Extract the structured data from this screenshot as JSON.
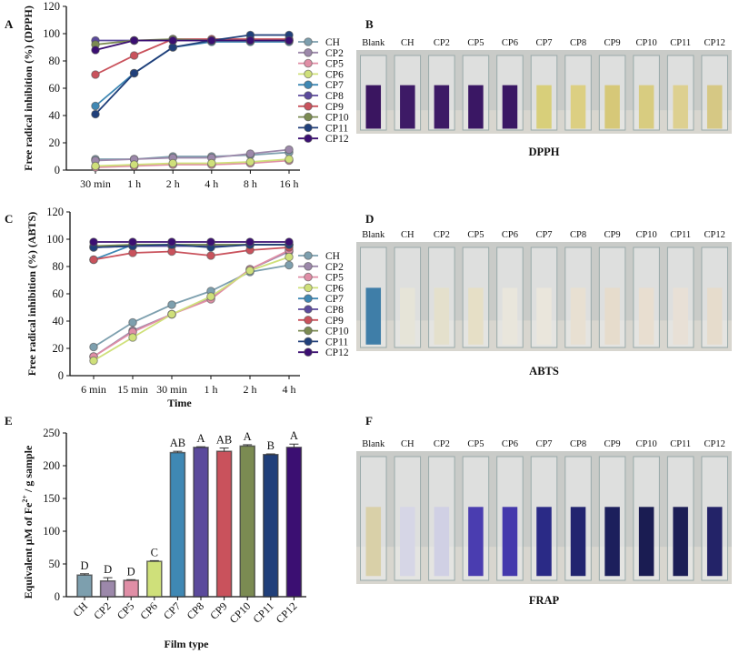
{
  "panels": {
    "A": "A",
    "B": "B",
    "C": "C",
    "D": "D",
    "E": "E",
    "F": "F"
  },
  "series_colors": {
    "CH": "#7d9fae",
    "CP2": "#9c88aa",
    "CP5": "#e08ea6",
    "CP6": "#cfe07a",
    "CP7": "#3f88b4",
    "CP8": "#5b4a9c",
    "CP9": "#c9525c",
    "CP10": "#7b8b52",
    "CP11": "#203f7a",
    "CP12": "#3b0f72"
  },
  "chart_data": [
    {
      "type": "line",
      "panel": "A",
      "title": "",
      "xlabel": "",
      "ylabel": "Free radical inhibition (%) (DPPH)",
      "ylim": [
        0,
        120
      ],
      "yticks": [
        "0",
        "20",
        "40",
        "60",
        "80",
        "100",
        "120"
      ],
      "categories": [
        "30 min",
        "1 h",
        "2 h",
        "4 h",
        "8 h",
        "16 h"
      ],
      "legend": "right",
      "series": [
        {
          "name": "CH",
          "values": [
            8,
            8,
            10,
            10,
            11,
            13
          ]
        },
        {
          "name": "CP2",
          "values": [
            7,
            8,
            9,
            9,
            12,
            15
          ]
        },
        {
          "name": "CP5",
          "values": [
            2,
            3,
            4,
            4,
            5,
            7
          ]
        },
        {
          "name": "CP6",
          "values": [
            3,
            4,
            5,
            5,
            6,
            8
          ]
        },
        {
          "name": "CP7",
          "values": [
            47,
            71,
            90,
            94,
            94,
            94
          ]
        },
        {
          "name": "CP8",
          "values": [
            95,
            95,
            95,
            95,
            95,
            95
          ]
        },
        {
          "name": "CP9",
          "values": [
            70,
            84,
            96,
            96,
            96,
            96
          ]
        },
        {
          "name": "CP10",
          "values": [
            92,
            95,
            96,
            95,
            95,
            95
          ]
        },
        {
          "name": "CP11",
          "values": [
            41,
            71,
            90,
            95,
            99,
            99
          ]
        },
        {
          "name": "CP12",
          "values": [
            88,
            95,
            95,
            95,
            95,
            95
          ]
        }
      ]
    },
    {
      "type": "line",
      "panel": "C",
      "title": "",
      "xlabel": "Time",
      "ylabel": "Free radical inhibition (%) (ABTS)",
      "ylim": [
        0,
        120
      ],
      "yticks": [
        "0",
        "20",
        "40",
        "60",
        "80",
        "100",
        "120"
      ],
      "categories": [
        "6 min",
        "15 min",
        "30 min",
        "1 h",
        "2 h",
        "4 h"
      ],
      "legend": "right",
      "series": [
        {
          "name": "CH",
          "values": [
            21,
            39,
            52,
            62,
            76,
            81
          ]
        },
        {
          "name": "CP2",
          "values": [
            14,
            33,
            45,
            57,
            78,
            91
          ]
        },
        {
          "name": "CP5",
          "values": [
            14,
            32,
            45,
            56,
            78,
            92
          ]
        },
        {
          "name": "CP6",
          "values": [
            11,
            28,
            45,
            58,
            77,
            87
          ]
        },
        {
          "name": "CP7",
          "values": [
            85,
            96,
            96,
            96,
            96,
            96
          ]
        },
        {
          "name": "CP8",
          "values": [
            94,
            95,
            95,
            95,
            96,
            96
          ]
        },
        {
          "name": "CP9",
          "values": [
            85,
            90,
            91,
            88,
            92,
            94
          ]
        },
        {
          "name": "CP10",
          "values": [
            95,
            96,
            96,
            96,
            96,
            96
          ]
        },
        {
          "name": "CP11",
          "values": [
            94,
            95,
            96,
            94,
            96,
            96
          ]
        },
        {
          "name": "CP12",
          "values": [
            98,
            98,
            98,
            98,
            98,
            98
          ]
        }
      ]
    },
    {
      "type": "bar",
      "panel": "E",
      "title": "",
      "xlabel": "Film type",
      "ylabel": "Equivalent μM of Fe2+ / g sample",
      "ylim": [
        0,
        250
      ],
      "yticks": [
        "0",
        "50",
        "100",
        "150",
        "200",
        "250"
      ],
      "categories": [
        "CH",
        "CP2",
        "CP5",
        "CP6",
        "CP7",
        "CP8",
        "CP9",
        "CP10",
        "CP11",
        "CP12"
      ],
      "values": [
        33,
        24,
        25,
        54,
        220,
        228,
        222,
        230,
        217,
        228
      ],
      "errors": [
        2,
        5,
        1,
        1,
        2,
        1,
        5,
        2,
        1,
        5
      ],
      "letters": [
        "D",
        "D",
        "D",
        "C",
        "AB",
        "A",
        "AB",
        "A",
        "B",
        "A"
      ]
    }
  ],
  "photos": [
    {
      "panel": "B",
      "caption": "DPPH",
      "labels": [
        "Blank",
        "CH",
        "CP2",
        "CP5",
        "CP6",
        "CP7",
        "CP8",
        "CP9",
        "CP10",
        "CP11",
        "CP12"
      ],
      "liquid": [
        "#3a1560",
        "#3d1a66",
        "#3d1a66",
        "#3a1764",
        "#3a1764",
        "#d8cf7a",
        "#dccf82",
        "#d6c878",
        "#d8cc80",
        "#ddd090",
        "#d6c884"
      ]
    },
    {
      "panel": "D",
      "caption": "ABTS",
      "labels": [
        "Blank",
        "CH",
        "CP2",
        "CP5",
        "CP6",
        "CP7",
        "CP8",
        "CP9",
        "CP10",
        "CP11",
        "CP12"
      ],
      "liquid": [
        "#3f7ea8",
        "#e6e4d8",
        "#e4e0cc",
        "#e6dfc6",
        "#e9e6dc",
        "#eae6dc",
        "#e8e0d2",
        "#e6dccc",
        "#e8ded0",
        "#e8e0d6",
        "#e6dccc"
      ]
    },
    {
      "panel": "F",
      "caption": "FRAP",
      "labels": [
        "Blank",
        "CH",
        "CP2",
        "CP5",
        "CP6",
        "CP7",
        "CP8",
        "CP9",
        "CP10",
        "CP11",
        "CP12"
      ],
      "liquid": [
        "#d9d0a8",
        "#d6d6e6",
        "#d0d0e4",
        "#4a3db0",
        "#4438ac",
        "#2a2a86",
        "#222470",
        "#1c1f5c",
        "#1a1c52",
        "#1c1e56",
        "#232368"
      ]
    }
  ]
}
